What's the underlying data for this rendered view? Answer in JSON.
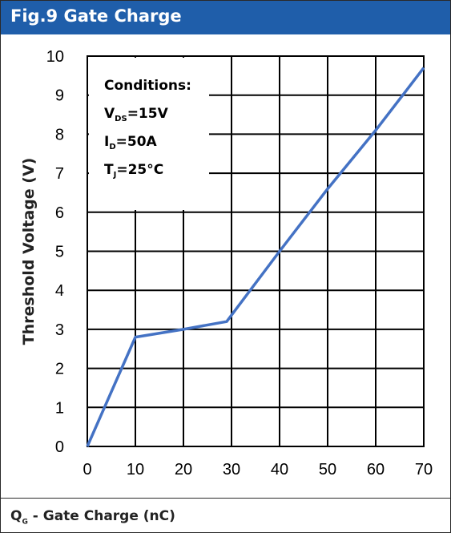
{
  "header": {
    "title": "Fig.9 Gate Charge"
  },
  "footer": {
    "q": "Q",
    "sub": "G",
    "rest": " - Gate Charge (nC)"
  },
  "conditions": {
    "title": "Conditions:",
    "lines": [
      {
        "main": "V",
        "sub": "DS",
        "rest": "=15V"
      },
      {
        "main": "I",
        "sub": "D",
        "rest": "=50A"
      },
      {
        "main": "T",
        "sub": "J",
        "rest": "=25°C"
      }
    ]
  },
  "chart_data": {
    "type": "line",
    "title": "Fig.9 Gate Charge",
    "xlabel": "Q_G - Gate Charge (nC)",
    "ylabel": "Threshold Voltage (V)",
    "xlim": [
      0,
      70
    ],
    "ylim": [
      0,
      10
    ],
    "xticks": [
      0,
      10,
      20,
      30,
      40,
      50,
      60,
      70
    ],
    "yticks": [
      0,
      1,
      2,
      3,
      4,
      5,
      6,
      7,
      8,
      9,
      10
    ],
    "grid": true,
    "line_color": "#4472c4",
    "series": [
      {
        "x": [
          0,
          10,
          20,
          29,
          40,
          50,
          60,
          70
        ],
        "y": [
          0,
          2.8,
          3.0,
          3.2,
          5.0,
          6.6,
          8.1,
          9.7
        ]
      }
    ]
  }
}
